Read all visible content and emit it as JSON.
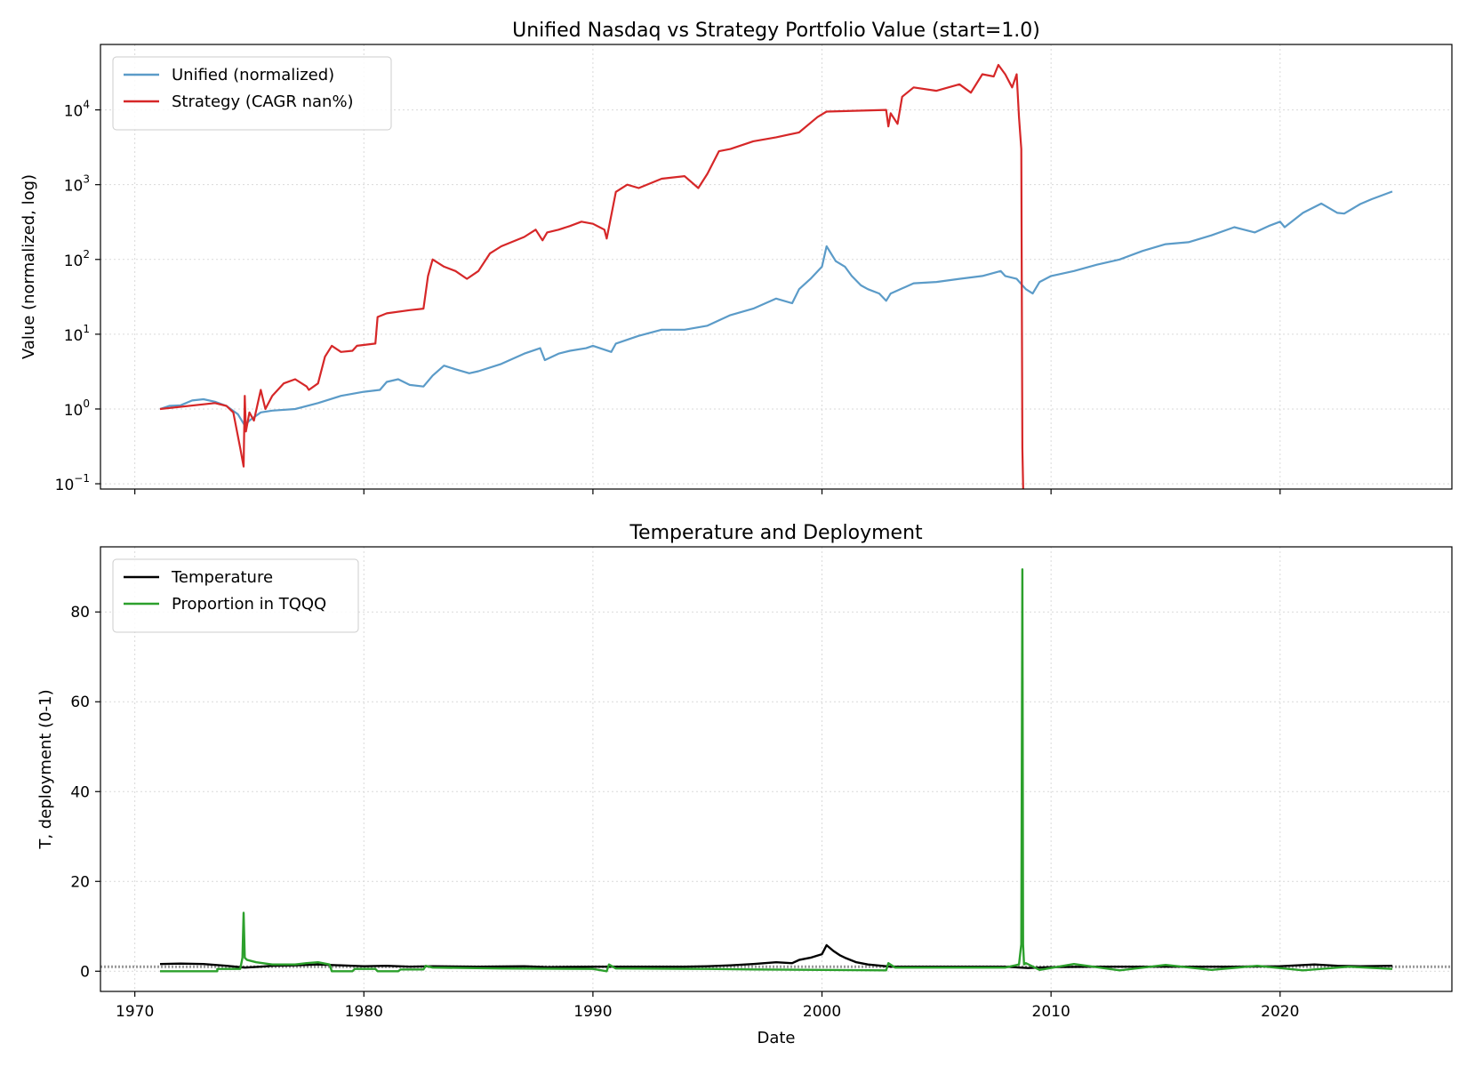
{
  "chart_data": [
    {
      "type": "line",
      "title": "Unified Nasdaq vs Strategy Portfolio Value (start=1.0)",
      "xlabel": "",
      "ylabel": "Value (normalized, log)",
      "yscale": "log",
      "xlim": [
        1968.5,
        2027.5
      ],
      "ylim": [
        0.085,
        75000
      ],
      "ytick_values": [
        0.1,
        1,
        10,
        100,
        1000,
        10000
      ],
      "ytick_labels": [
        {
          "base": "10",
          "exp": "−1"
        },
        {
          "base": "10",
          "exp": "0"
        },
        {
          "base": "10",
          "exp": "1"
        },
        {
          "base": "10",
          "exp": "2"
        },
        {
          "base": "10",
          "exp": "3"
        },
        {
          "base": "10",
          "exp": "4"
        }
      ],
      "xticks": [
        1970,
        1980,
        1990,
        2000,
        2010,
        2020
      ],
      "xtick_labels_shown": false,
      "grid": true,
      "legend_position": "upper-left",
      "series": [
        {
          "name": "Unified (normalized)",
          "color": "#5b9bc8",
          "x": [
            1971.1,
            1971.5,
            1972.0,
            1972.5,
            1973.0,
            1973.5,
            1974.0,
            1974.5,
            1974.8,
            1975.0,
            1975.5,
            1976.0,
            1977.0,
            1978.0,
            1979.0,
            1980.0,
            1980.7,
            1981.0,
            1981.5,
            1982.0,
            1982.6,
            1983.0,
            1983.5,
            1984.0,
            1984.6,
            1985.0,
            1986.0,
            1987.0,
            1987.7,
            1987.9,
            1988.5,
            1989.0,
            1989.7,
            1990.0,
            1990.8,
            1991.0,
            1992.0,
            1993.0,
            1994.0,
            1995.0,
            1996.0,
            1997.0,
            1998.0,
            1998.7,
            1999.0,
            1999.5,
            2000.0,
            2000.2,
            2000.6,
            2001.0,
            2001.3,
            2001.7,
            2002.0,
            2002.5,
            2002.8,
            2003.0,
            2004.0,
            2005.0,
            2006.0,
            2007.0,
            2007.8,
            2008.0,
            2008.5,
            2008.9,
            2009.2,
            2009.5,
            2010.0,
            2011.0,
            2012.0,
            2013.0,
            2014.0,
            2015.0,
            2016.0,
            2017.0,
            2018.0,
            2018.9,
            2019.5,
            2020.0,
            2020.2,
            2021.0,
            2021.8,
            2022.5,
            2022.8,
            2023.5,
            2024.0,
            2024.9
          ],
          "y": [
            1.0,
            1.1,
            1.12,
            1.3,
            1.35,
            1.25,
            1.1,
            0.85,
            0.6,
            0.7,
            0.9,
            0.95,
            1.0,
            1.2,
            1.5,
            1.7,
            1.8,
            2.3,
            2.5,
            2.1,
            2.0,
            2.8,
            3.8,
            3.4,
            3.0,
            3.2,
            4.0,
            5.5,
            6.5,
            4.5,
            5.5,
            6.0,
            6.5,
            7.0,
            5.8,
            7.5,
            9.5,
            11.5,
            11.5,
            13.0,
            18.0,
            22.0,
            30.0,
            26.0,
            40.0,
            55.0,
            80.0,
            150.0,
            95.0,
            80.0,
            60.0,
            45.0,
            40.0,
            35.0,
            28.0,
            35.0,
            48.0,
            50.0,
            55.0,
            60.0,
            70.0,
            60.0,
            55.0,
            40.0,
            35.0,
            50.0,
            60.0,
            70.0,
            85.0,
            100.0,
            130.0,
            160.0,
            170.0,
            210.0,
            270.0,
            230.0,
            280.0,
            320.0,
            270.0,
            420.0,
            560.0,
            420.0,
            410.0,
            550.0,
            640.0,
            810.0
          ]
        },
        {
          "name": "Strategy (CAGR nan%)",
          "color": "#d62728",
          "x": [
            1971.1,
            1973.5,
            1974.0,
            1974.3,
            1974.6,
            1974.75,
            1974.8,
            1974.85,
            1975.0,
            1975.2,
            1975.5,
            1975.7,
            1976.0,
            1976.5,
            1977.0,
            1977.5,
            1977.6,
            1978.0,
            1978.3,
            1978.6,
            1979.0,
            1979.5,
            1979.7,
            1980.5,
            1980.6,
            1981.0,
            1982.0,
            1982.6,
            1982.8,
            1983.0,
            1983.5,
            1984.0,
            1984.5,
            1985.0,
            1985.5,
            1986.0,
            1987.0,
            1987.5,
            1987.8,
            1988.0,
            1988.5,
            1989.0,
            1989.5,
            1990.0,
            1990.5,
            1990.6,
            1991.0,
            1991.5,
            1992.0,
            1993.0,
            1994.0,
            1994.6,
            1995.0,
            1995.5,
            1996.0,
            1997.0,
            1998.0,
            1999.0,
            1999.8,
            2000.2,
            2002.8,
            2002.9,
            2003.0,
            2003.3,
            2003.5,
            2004.0,
            2005.0,
            2006.0,
            2006.5,
            2007.0,
            2007.5,
            2007.7,
            2008.0,
            2008.3,
            2008.5,
            2008.6,
            2008.7,
            2008.75,
            2008.8
          ],
          "y": [
            1.0,
            1.2,
            1.1,
            0.9,
            0.3,
            0.17,
            1.5,
            0.5,
            0.9,
            0.7,
            1.8,
            1.0,
            1.5,
            2.2,
            2.5,
            2.0,
            1.8,
            2.2,
            5.0,
            7.0,
            5.8,
            6.0,
            7.0,
            7.5,
            17.0,
            19.0,
            21.0,
            22.0,
            60.0,
            100.0,
            80.0,
            70.0,
            55.0,
            70.0,
            120.0,
            150.0,
            200.0,
            250.0,
            180.0,
            230.0,
            250.0,
            280.0,
            320.0,
            300.0,
            250.0,
            190.0,
            800.0,
            1000.0,
            900.0,
            1200.0,
            1300.0,
            900.0,
            1400.0,
            2800.0,
            3000.0,
            3800.0,
            4300.0,
            5000.0,
            8000.0,
            9500.0,
            10000.0,
            6000.0,
            9000.0,
            6500.0,
            15000.0,
            20000.0,
            18000.0,
            22000.0,
            17000.0,
            30000.0,
            28000.0,
            40000.0,
            30000.0,
            20000.0,
            30000.0,
            8000.0,
            3000.0,
            0.3,
            0.05
          ]
        }
      ]
    },
    {
      "type": "line",
      "title": "Temperature and Deployment",
      "xlabel": "Date",
      "ylabel": "T, deployment (0-1)",
      "xlim": [
        1968.5,
        2027.5
      ],
      "ylim": [
        -4.5,
        94.5
      ],
      "yticks": [
        0,
        20,
        40,
        60,
        80
      ],
      "xticks": [
        1970,
        1980,
        1990,
        2000,
        2010,
        2020
      ],
      "grid": true,
      "legend_position": "upper-left",
      "reference_line": {
        "y": 1,
        "color": "#999999",
        "style": "dotted"
      },
      "series": [
        {
          "name": "Temperature",
          "color": "#000000",
          "x": [
            1971.1,
            1972.0,
            1973.0,
            1974.0,
            1974.8,
            1975.5,
            1976.0,
            1977.0,
            1978.0,
            1979.0,
            1980.0,
            1981.0,
            1982.0,
            1983.0,
            1985.0,
            1987.0,
            1988.0,
            1990.0,
            1992.0,
            1994.0,
            1995.0,
            1996.0,
            1997.0,
            1998.0,
            1998.7,
            1999.0,
            1999.5,
            2000.0,
            2000.2,
            2000.5,
            2000.8,
            2001.0,
            2001.5,
            2002.0,
            2003.0,
            2004.0,
            2006.0,
            2008.0,
            2009.0,
            2010.0,
            2012.0,
            2014.0,
            2016.0,
            2018.0,
            2020.0,
            2021.5,
            2022.5,
            2023.5,
            2024.9
          ],
          "y": [
            1.6,
            1.7,
            1.6,
            1.2,
            0.8,
            1.0,
            1.2,
            1.3,
            1.5,
            1.3,
            1.1,
            1.2,
            1.0,
            1.1,
            1.0,
            1.1,
            0.9,
            1.0,
            1.0,
            1.0,
            1.1,
            1.3,
            1.6,
            2.0,
            1.8,
            2.5,
            3.0,
            3.8,
            5.8,
            4.5,
            3.5,
            3.0,
            2.0,
            1.5,
            1.0,
            1.0,
            1.0,
            1.0,
            0.7,
            0.9,
            1.0,
            1.0,
            1.0,
            1.0,
            1.1,
            1.5,
            1.2,
            1.1,
            1.2
          ]
        },
        {
          "name": "Proportion in TQQQ",
          "color": "#2ca02c",
          "x": [
            1971.1,
            1973.6,
            1973.6,
            1974.6,
            1974.7,
            1974.75,
            1974.8,
            1974.9,
            1975.3,
            1976.0,
            1977.0,
            1977.5,
            1978.0,
            1978.5,
            1978.6,
            1979.5,
            1979.6,
            1980.5,
            1980.6,
            1981.5,
            1981.6,
            1982.6,
            1982.7,
            1983.0,
            1986.0,
            1990.0,
            1990.6,
            1990.7,
            1991.0,
            1995.0,
            1997.0,
            2000.0,
            2002.8,
            2002.9,
            2003.2,
            2005.0,
            2008.0,
            2008.6,
            2008.7,
            2008.75,
            2008.78,
            2008.82,
            2008.9,
            2009.5,
            2011.0,
            2013.0,
            2015.0,
            2017.0,
            2019.0,
            2021.0,
            2023.0,
            2024.9
          ],
          "y": [
            0.0,
            0.0,
            0.5,
            0.5,
            3.0,
            13.0,
            3.0,
            2.5,
            2.0,
            1.5,
            1.5,
            1.8,
            2.0,
            1.5,
            0.0,
            0.0,
            0.5,
            0.5,
            0.0,
            0.0,
            0.4,
            0.4,
            1.2,
            0.8,
            0.6,
            0.5,
            0.0,
            1.5,
            0.6,
            0.5,
            0.4,
            0.3,
            0.2,
            1.8,
            0.8,
            0.8,
            0.8,
            1.5,
            6.0,
            89.5,
            6.0,
            1.5,
            1.8,
            0.3,
            1.6,
            0.2,
            1.4,
            0.3,
            1.2,
            0.2,
            1.0,
            0.5
          ]
        }
      ]
    }
  ]
}
